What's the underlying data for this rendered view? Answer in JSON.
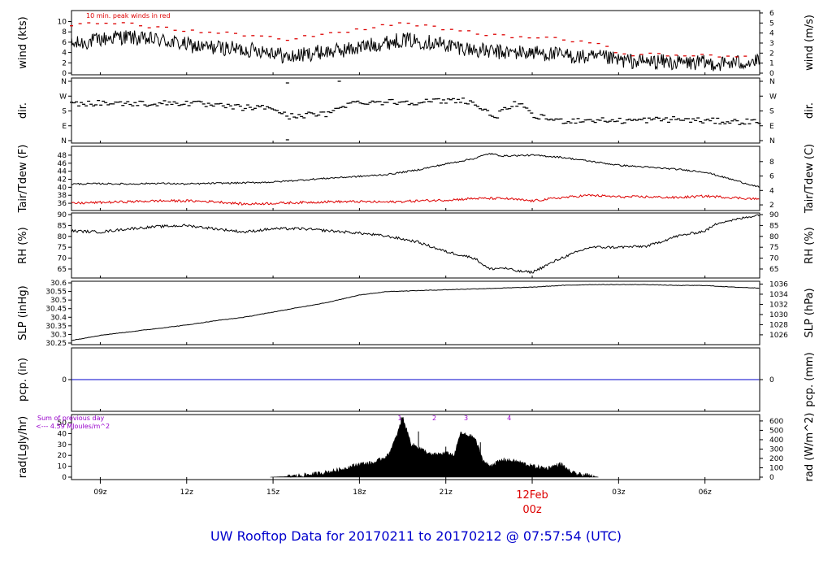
{
  "title": "UW Rooftop Data for 20170211  to  20170212 @ 07:57:54  (UTC)",
  "colors": {
    "black": "#000000",
    "red": "#dd0000",
    "blue": "#0000cc",
    "purple": "#9900cc",
    "title_blue": "#0000cc"
  },
  "x_axis": {
    "range_hours": [
      8.0,
      31.9
    ],
    "ticks": [
      {
        "hour": 9,
        "label": "09z"
      },
      {
        "hour": 12,
        "label": "12z"
      },
      {
        "hour": 15,
        "label": "15z"
      },
      {
        "hour": 18,
        "label": "18z"
      },
      {
        "hour": 21,
        "label": "21z"
      },
      {
        "hour": 24,
        "label": ""
      },
      {
        "hour": 27,
        "label": "03z"
      },
      {
        "hour": 30,
        "label": "06z"
      }
    ],
    "day_label": "12Feb",
    "day_sublabel": "00z"
  },
  "chart_data": [
    {
      "type": "line",
      "id": "wind",
      "ylabel": "wind (kts)",
      "ylabel_right": "wind (m/s)",
      "ylim": [
        0,
        11.5
      ],
      "yticks": [
        0,
        2,
        4,
        6,
        8,
        10
      ],
      "right_ylim": [
        0,
        5.92
      ],
      "right_yticks": [
        0,
        1,
        2,
        3,
        4,
        5,
        6
      ],
      "annotation": "10 min. peak winds in red",
      "series": [
        {
          "role": "speed",
          "color": "#000000",
          "x": [
            8.0,
            8.5,
            9.0,
            9.5,
            10.0,
            10.5,
            11.0,
            11.5,
            12.0,
            12.5,
            13.0,
            13.5,
            14.0,
            14.5,
            15.0,
            15.5,
            16.0,
            16.5,
            17.0,
            17.5,
            18.0,
            18.5,
            19.0,
            19.5,
            20.0,
            20.5,
            21.0,
            21.5,
            22.0,
            22.5,
            23.0,
            23.5,
            24.0,
            24.5,
            25.0,
            25.5,
            26.0,
            26.5,
            27.0,
            27.5,
            28.0,
            28.5,
            29.0,
            29.5,
            30.0,
            30.5,
            31.0,
            31.5,
            31.9
          ],
          "y": [
            5.5,
            6.0,
            6.5,
            7.0,
            7.0,
            6.5,
            6.5,
            6.0,
            5.5,
            5.0,
            5.0,
            4.8,
            4.5,
            4.5,
            4.2,
            3.0,
            3.5,
            4.0,
            4.2,
            4.5,
            5.0,
            5.5,
            6.0,
            6.5,
            6.2,
            6.0,
            5.5,
            5.0,
            4.5,
            4.2,
            4.0,
            4.0,
            4.0,
            3.8,
            3.5,
            3.2,
            3.0,
            3.0,
            2.5,
            2.3,
            2.2,
            2.2,
            2.0,
            2.0,
            2.0,
            1.8,
            2.0,
            2.2,
            2.2
          ],
          "noise_amp": 1.5
        },
        {
          "role": "peak",
          "color": "#dd0000",
          "marker": "dash",
          "x": [
            8.0,
            8.5,
            9.0,
            9.5,
            10.0,
            10.5,
            11.0,
            11.5,
            12.0,
            12.5,
            13.0,
            13.5,
            14.0,
            14.5,
            15.0,
            15.5,
            16.0,
            16.5,
            17.0,
            17.5,
            18.0,
            18.5,
            19.0,
            19.5,
            20.0,
            20.5,
            21.0,
            21.5,
            22.0,
            22.5,
            23.0,
            23.5,
            24.0,
            24.5,
            25.0,
            25.5,
            26.0,
            26.5,
            27.0,
            27.5,
            28.0,
            28.5,
            29.0,
            29.5,
            30.0,
            30.5,
            31.0,
            31.5
          ],
          "y": [
            9.0,
            9.5,
            9.5,
            9.5,
            9.5,
            9.0,
            8.8,
            8.5,
            8.2,
            8.0,
            8.0,
            7.8,
            7.5,
            7.5,
            7.2,
            6.5,
            7.0,
            7.5,
            7.8,
            8.0,
            8.5,
            9.0,
            9.5,
            9.5,
            9.2,
            9.0,
            8.5,
            8.2,
            7.8,
            7.5,
            7.2,
            7.0,
            7.0,
            6.8,
            6.5,
            6.2,
            6.0,
            5.8,
            3.8,
            3.6,
            3.6,
            3.5,
            3.5,
            3.4,
            3.4,
            3.3,
            3.4,
            3.5
          ]
        }
      ]
    },
    {
      "type": "scatter",
      "id": "dir",
      "ylabel": "dir.",
      "ylabel_right": "dir.",
      "ylim": [
        0,
        360
      ],
      "ytick_values": [
        0,
        90,
        180,
        270,
        360
      ],
      "ytick_labels": [
        "N",
        "E",
        "S",
        "W",
        "N"
      ],
      "series": [
        {
          "role": "direction",
          "color": "#000000",
          "marker": "dash",
          "x": [
            8.0,
            9.0,
            10.0,
            11.0,
            12.0,
            13.0,
            14.0,
            15.0,
            15.5,
            16.0,
            17.0,
            17.3,
            18.0,
            19.0,
            20.0,
            21.0,
            21.5,
            22.0,
            22.5,
            22.8,
            23.2,
            23.5,
            24.0,
            25.0,
            26.0,
            27.0,
            28.0,
            29.0,
            30.0,
            31.0,
            31.9
          ],
          "y": [
            225,
            230,
            225,
            225,
            230,
            210,
            200,
            200,
            145,
            155,
            160,
            210,
            235,
            235,
            235,
            240,
            250,
            225,
            160,
            155,
            200,
            230,
            150,
            120,
            125,
            120,
            125,
            130,
            120,
            115,
            115
          ],
          "noise_amp": 18
        }
      ]
    },
    {
      "type": "line",
      "id": "temp",
      "ylabel": "Tair/Tdew (F)",
      "ylabel_right": "Tair/Tdew (C)",
      "ylim": [
        34.8,
        49.4
      ],
      "yticks": [
        36,
        38,
        40,
        42,
        44,
        46,
        48
      ],
      "right_yticks": [
        2,
        4,
        6,
        8
      ],
      "series": [
        {
          "role": "air",
          "color": "#000000",
          "x": [
            8.0,
            9.0,
            10.0,
            11.0,
            12.0,
            13.0,
            14.0,
            15.0,
            16.0,
            17.0,
            18.0,
            19.0,
            20.0,
            21.0,
            22.0,
            22.5,
            23.0,
            24.0,
            25.0,
            26.0,
            27.0,
            28.0,
            29.0,
            30.0,
            31.0,
            31.9
          ],
          "y": [
            40.8,
            40.9,
            40.8,
            41.0,
            40.8,
            41.0,
            41.1,
            41.3,
            41.8,
            42.3,
            42.7,
            43.2,
            44.3,
            45.8,
            47.2,
            48.4,
            47.8,
            48.0,
            47.5,
            46.5,
            45.5,
            45.0,
            44.5,
            43.8,
            41.8,
            40.0
          ],
          "noise_amp": 0.2
        },
        {
          "role": "dew",
          "color": "#dd0000",
          "x": [
            8.0,
            9.0,
            10.0,
            11.0,
            12.0,
            13.0,
            14.0,
            15.0,
            16.0,
            17.0,
            18.0,
            19.0,
            20.0,
            21.0,
            22.0,
            23.0,
            24.0,
            25.0,
            26.0,
            27.0,
            28.0,
            29.0,
            30.0,
            31.0,
            31.9
          ],
          "y": [
            36.0,
            36.2,
            36.4,
            36.6,
            36.6,
            36.4,
            35.8,
            36.0,
            36.2,
            36.4,
            36.4,
            36.3,
            36.6,
            36.8,
            37.2,
            37.2,
            36.6,
            37.4,
            38.0,
            37.6,
            37.6,
            37.4,
            37.8,
            37.4,
            37.0
          ],
          "noise_amp": 0.3
        }
      ]
    },
    {
      "type": "line",
      "id": "rh",
      "ylabel": "RH (%)",
      "ylabel_right": "RH (%)",
      "ylim": [
        62,
        90
      ],
      "yticks": [
        65,
        70,
        75,
        80,
        85,
        90
      ],
      "series": [
        {
          "role": "rh",
          "color": "#000000",
          "x": [
            8.0,
            9.0,
            10.0,
            11.0,
            12.0,
            13.0,
            14.0,
            15.0,
            16.0,
            17.0,
            18.0,
            19.0,
            20.0,
            21.0,
            22.0,
            22.5,
            23.0,
            23.5,
            24.0,
            25.0,
            26.0,
            27.0,
            28.0,
            29.0,
            30.0,
            30.5,
            31.0,
            31.9
          ],
          "y": [
            82.5,
            82.0,
            83.5,
            84.5,
            85.0,
            83.5,
            82.0,
            83.5,
            83.5,
            82.5,
            81.5,
            80.0,
            77.5,
            73.0,
            70.0,
            65.0,
            65.5,
            64.0,
            63.5,
            70.0,
            75.0,
            75.0,
            75.5,
            80.0,
            82.5,
            86.5,
            87.5,
            90.0
          ],
          "noise_amp": 0.6
        }
      ]
    },
    {
      "type": "line",
      "id": "slp",
      "ylabel": "SLP (inHg)",
      "ylabel_right": "SLP (hPa)",
      "ylim": [
        30.25,
        30.6
      ],
      "yticks": [
        30.25,
        30.3,
        30.35,
        30.4,
        30.45,
        30.5,
        30.55,
        30.6
      ],
      "right_yticks": [
        1026,
        1028,
        1030,
        1032,
        1034,
        1036
      ],
      "series": [
        {
          "role": "pressure",
          "color": "#000000",
          "x": [
            8.0,
            9.0,
            10.0,
            11.0,
            12.0,
            13.0,
            14.0,
            15.0,
            16.0,
            17.0,
            18.0,
            19.0,
            20.0,
            21.0,
            22.0,
            23.0,
            24.0,
            25.0,
            26.0,
            27.0,
            28.0,
            29.0,
            30.0,
            31.0,
            31.9
          ],
          "y": [
            30.265,
            30.295,
            30.315,
            30.335,
            30.355,
            30.38,
            30.4,
            30.43,
            30.46,
            30.49,
            30.53,
            30.55,
            30.555,
            30.56,
            30.565,
            30.57,
            30.575,
            30.585,
            30.59,
            30.59,
            30.59,
            30.585,
            30.585,
            30.575,
            30.57
          ],
          "noise_amp": 0.0015
        }
      ]
    },
    {
      "type": "line",
      "id": "pcp",
      "ylabel": "pcp. (in)",
      "ylabel_right": "pcp. (mm)",
      "ylim": [
        -1,
        1
      ],
      "yticks": [
        0
      ],
      "right_yticks": [
        0
      ],
      "series": [
        {
          "role": "precip",
          "color": "#0000cc",
          "x": [
            8.0,
            31.9
          ],
          "y": [
            0,
            0
          ]
        }
      ]
    },
    {
      "type": "area",
      "id": "rad",
      "ylabel": "rad(Lgly/hr)",
      "ylabel_right": "rad (W/m^2)",
      "ylim": [
        0,
        56
      ],
      "yticks": [
        0,
        10,
        20,
        30,
        40,
        50
      ],
      "right_yticks": [
        0,
        100,
        200,
        300,
        400,
        500,
        600
      ],
      "annotation_line1": "Sum of previous day",
      "annotation_line2": "<--- 4.59 MJoules/m^2",
      "markers": [
        "1",
        "2",
        "3",
        "4"
      ],
      "marker_hours": [
        19.4,
        20.6,
        21.7,
        23.2
      ],
      "series": [
        {
          "role": "radiation",
          "color": "#000000",
          "x": [
            14.9,
            15.5,
            16.0,
            16.5,
            17.0,
            17.5,
            18.0,
            18.5,
            19.0,
            19.3,
            19.5,
            19.8,
            20.0,
            20.5,
            21.0,
            21.3,
            21.5,
            21.8,
            22.0,
            22.3,
            22.5,
            23.0,
            23.5,
            24.0,
            24.5,
            25.0,
            25.3,
            25.5,
            26.0,
            26.3
          ],
          "y": [
            0.0,
            0.5,
            1.5,
            3.0,
            5.0,
            8.0,
            12.0,
            13.0,
            20.0,
            38.0,
            55.0,
            30.0,
            28.0,
            20.0,
            22.0,
            20.0,
            40.0,
            38.0,
            36.0,
            15.0,
            10.0,
            16.0,
            14.0,
            10.0,
            8.0,
            12.0,
            5.0,
            3.0,
            1.0,
            0.0
          ],
          "noise_amp": 2
        }
      ]
    }
  ]
}
